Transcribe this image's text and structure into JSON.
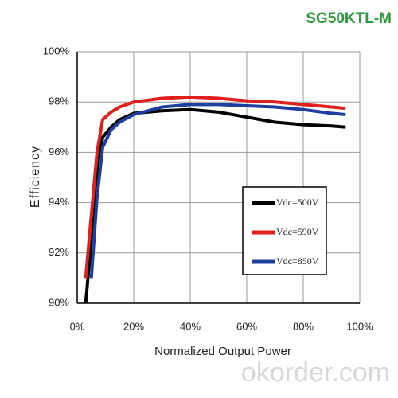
{
  "chart_data": {
    "type": "line",
    "title": "SG50KTL-M",
    "title_color": "#2a9a3a",
    "xlabel": "Normalized Output Power",
    "ylabel": "Efficiency",
    "watermark": "okorder.com",
    "x": [
      3,
      5,
      7,
      9,
      12,
      15,
      20,
      30,
      40,
      50,
      60,
      70,
      80,
      90,
      95
    ],
    "series": [
      {
        "name": "Vdc=500V",
        "color": "#000000",
        "values": [
          90,
          92.5,
          95.3,
          96.6,
          97.0,
          97.3,
          97.55,
          97.65,
          97.7,
          97.6,
          97.4,
          97.2,
          97.1,
          97.05,
          97.0
        ]
      },
      {
        "name": "Vdc=590V",
        "color": "#e0201c",
        "values": [
          91,
          93.5,
          96,
          97.3,
          97.6,
          97.8,
          98.0,
          98.15,
          98.2,
          98.15,
          98.05,
          98.0,
          97.9,
          97.8,
          97.75
        ]
      },
      {
        "name": "Vdc=850V",
        "color": "#1f3fa0",
        "values": [
          null,
          91,
          94.2,
          96.2,
          96.9,
          97.2,
          97.5,
          97.8,
          97.9,
          97.9,
          97.85,
          97.8,
          97.7,
          97.55,
          97.5
        ]
      }
    ],
    "xlim": [
      0,
      100
    ],
    "ylim": [
      90,
      100
    ],
    "xticks": [
      {
        "value": 0,
        "label": "0%"
      },
      {
        "value": 20,
        "label": "20%"
      },
      {
        "value": 40,
        "label": "40%"
      },
      {
        "value": 60,
        "label": "60%"
      },
      {
        "value": 80,
        "label": "80%"
      },
      {
        "value": 100,
        "label": "100%"
      }
    ],
    "yticks": [
      {
        "value": 90,
        "label": "90%"
      },
      {
        "value": 92,
        "label": "92%"
      },
      {
        "value": 94,
        "label": "94%"
      },
      {
        "value": 96,
        "label": "96%"
      },
      {
        "value": 98,
        "label": "98%"
      },
      {
        "value": 100,
        "label": "100%"
      }
    ],
    "grid": true,
    "legend": "right"
  }
}
